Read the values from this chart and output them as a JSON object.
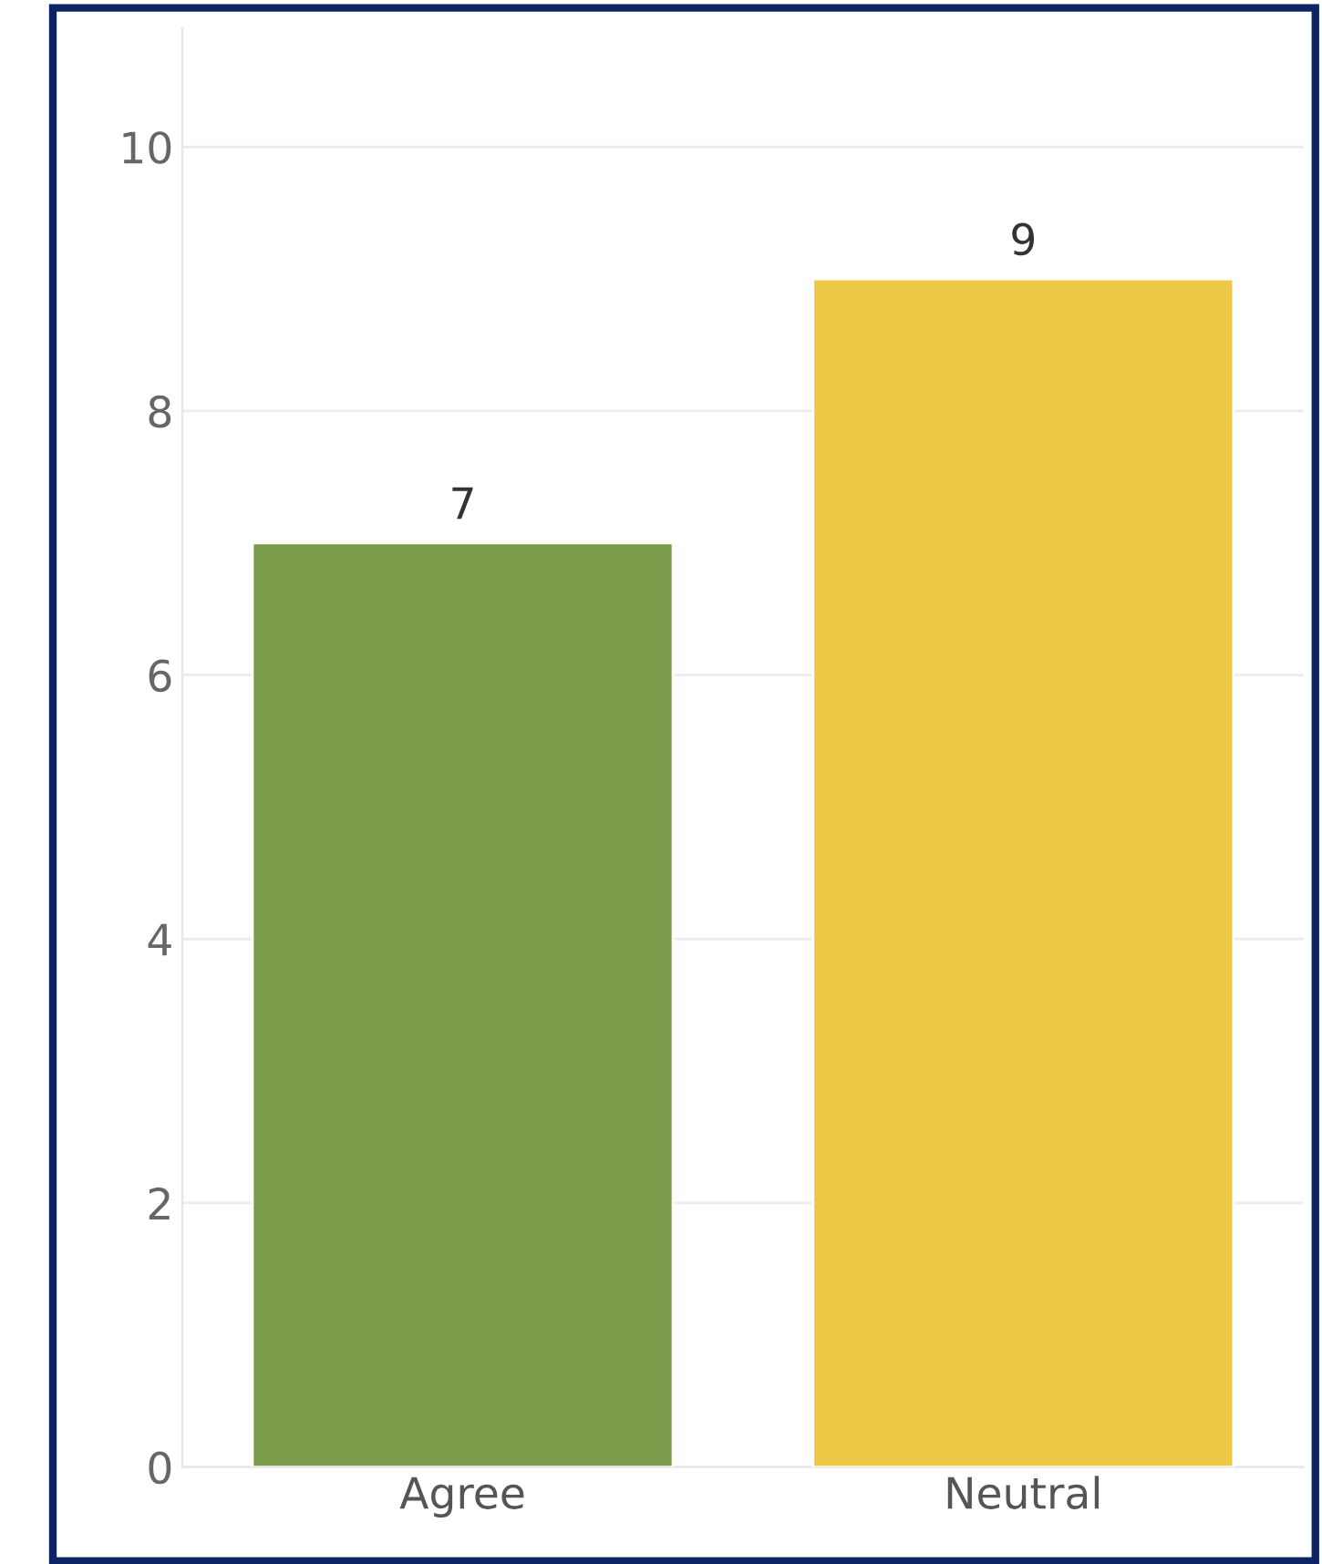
{
  "chart_data": {
    "type": "bar",
    "categories": [
      "Agree",
      "Neutral"
    ],
    "values": [
      7,
      9
    ],
    "colors": [
      "#7a9b4a",
      "#ecc846"
    ],
    "ylim": [
      0,
      10.9
    ],
    "yticks": [
      0,
      2,
      4,
      6,
      8,
      10
    ],
    "grid": "y",
    "data_labels": true,
    "legend": false
  }
}
